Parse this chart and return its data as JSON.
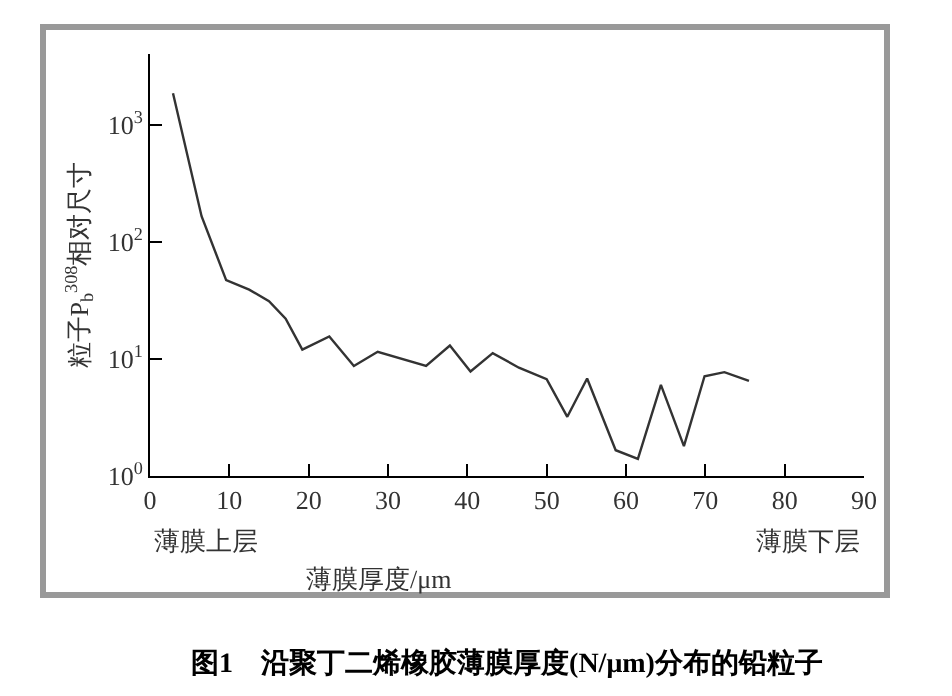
{
  "chart_data": {
    "type": "line",
    "title": "图1　沿聚丁二烯橡胶薄膜厚度(N/μm)分布的铅粒子",
    "xlabel": "薄膜厚度/μm",
    "ylabel": "粒子P$_{b}$$^{308}$相对尺寸",
    "annotations": [
      "薄膜上层",
      "薄膜下层"
    ],
    "x": [
      2.9,
      6.5,
      9.6,
      12.5,
      15,
      17.1,
      19.2,
      22.6,
      25.7,
      28.7,
      34.8,
      37.8,
      40.4,
      43.2,
      46.5,
      50.0,
      52.6,
      55.1,
      58.7,
      61.5,
      64.4,
      67.3,
      69.9,
      72.4,
      75.5
    ],
    "series": [
      {
        "color": "#333333",
        "values": [
          1850,
          165,
          47,
          39,
          31,
          22,
          12,
          15.5,
          8.7,
          11.5,
          8.7,
          13,
          7.8,
          11.2,
          8.4,
          6.7,
          3.2,
          6.8,
          1.66,
          1.4,
          6.0,
          1.8,
          7.1,
          7.7,
          6.5
        ]
      }
    ],
    "log": true,
    "grid": false,
    "marker": "none",
    "line_style": "solid",
    "xlim": [
      0,
      90
    ],
    "xticks": [
      0,
      10,
      20,
      30,
      40,
      50,
      60,
      70,
      80,
      90
    ],
    "ylim": [
      1,
      4000
    ],
    "yticks": [
      {
        "value": 1,
        "label": "10$^{0}$"
      },
      {
        "value": 10,
        "label": "10$^{1}$"
      },
      {
        "value": 100,
        "label": "10$^{2}$"
      },
      {
        "value": 1000,
        "label": "10$^{3}$"
      }
    ]
  }
}
